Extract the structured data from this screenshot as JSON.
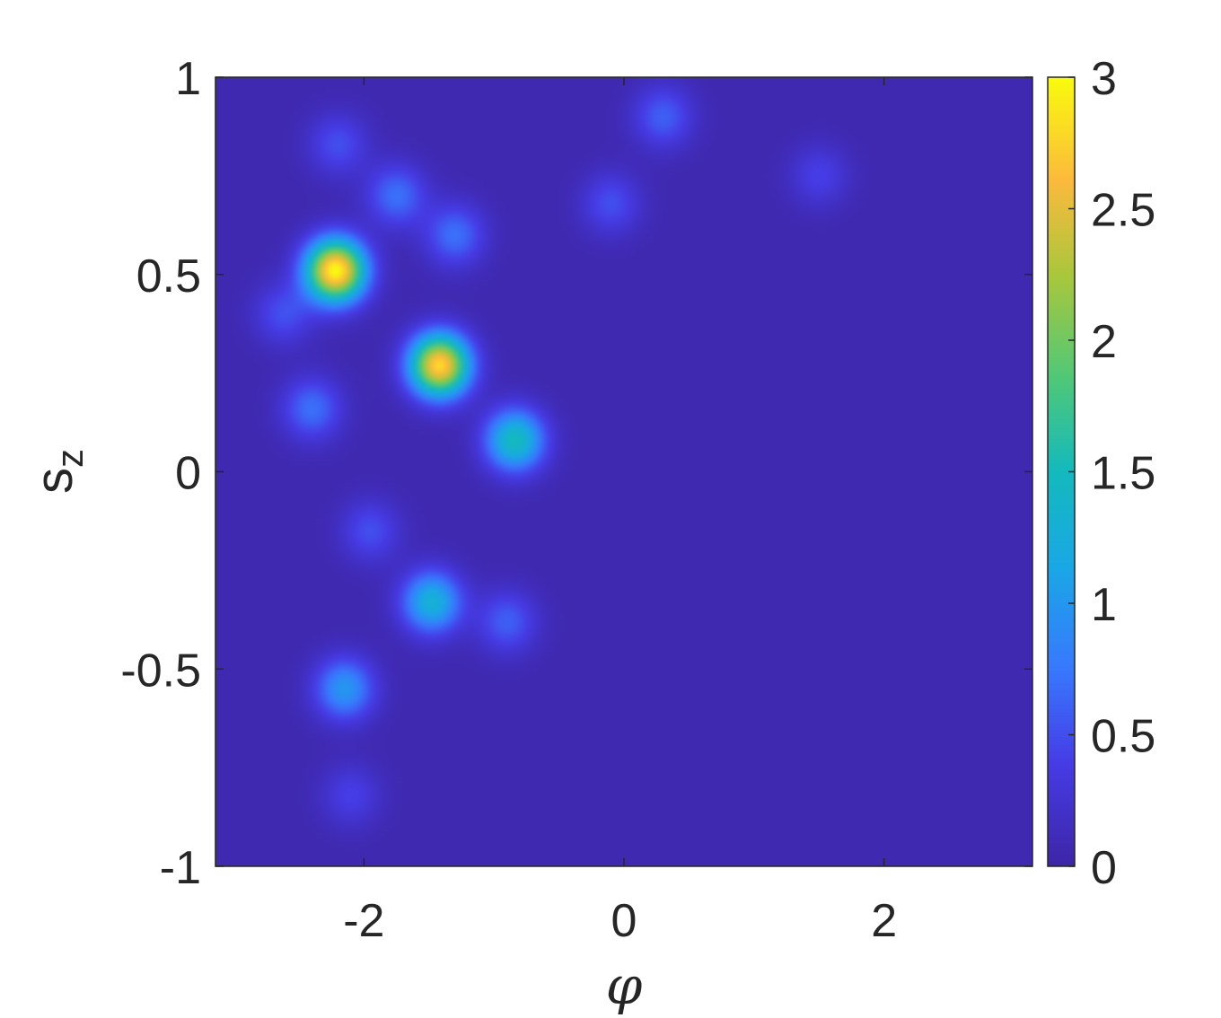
{
  "chart_data": {
    "type": "heatmap",
    "title": "",
    "xlabel": "φ",
    "ylabel_main": "s",
    "ylabel_sub": "z",
    "xlim": [
      -3.1416,
      3.1416
    ],
    "ylim": [
      -1,
      1
    ],
    "x_ticks": [
      {
        "value": -2,
        "label": "-2"
      },
      {
        "value": 0,
        "label": "0"
      },
      {
        "value": 2,
        "label": "2"
      }
    ],
    "y_ticks": [
      {
        "value": -1,
        "label": "-1"
      },
      {
        "value": -0.5,
        "label": "-0.5"
      },
      {
        "value": 0,
        "label": "0"
      },
      {
        "value": 0.5,
        "label": "0.5"
      },
      {
        "value": 1,
        "label": "1"
      }
    ],
    "colorbar": {
      "colormap": "parula",
      "range": [
        0,
        3
      ],
      "ticks": [
        {
          "value": 0,
          "label": "0"
        },
        {
          "value": 0.5,
          "label": "0.5"
        },
        {
          "value": 1,
          "label": "1"
        },
        {
          "value": 1.5,
          "label": "1.5"
        },
        {
          "value": 2,
          "label": "2"
        },
        {
          "value": 2.5,
          "label": "2.5"
        },
        {
          "value": 3,
          "label": "3"
        }
      ]
    },
    "background_value": 0.05,
    "peaks": [
      {
        "x": -2.22,
        "y": 0.51,
        "value": 3.0
      },
      {
        "x": -1.42,
        "y": 0.27,
        "value": 2.8
      },
      {
        "x": -0.84,
        "y": 0.08,
        "value": 1.5
      },
      {
        "x": -1.48,
        "y": -0.33,
        "value": 1.3
      },
      {
        "x": -2.15,
        "y": -0.55,
        "value": 1.0
      },
      {
        "x": -2.4,
        "y": 0.16,
        "value": 0.7
      },
      {
        "x": -2.62,
        "y": 0.4,
        "value": 0.5
      },
      {
        "x": -1.75,
        "y": 0.7,
        "value": 0.7
      },
      {
        "x": -1.3,
        "y": 0.6,
        "value": 0.7
      },
      {
        "x": -2.2,
        "y": 0.83,
        "value": 0.5
      },
      {
        "x": -0.9,
        "y": -0.38,
        "value": 0.6
      },
      {
        "x": -1.95,
        "y": -0.15,
        "value": 0.5
      },
      {
        "x": -2.1,
        "y": -0.82,
        "value": 0.4
      },
      {
        "x": 0.3,
        "y": 0.9,
        "value": 0.6
      },
      {
        "x": 1.5,
        "y": 0.75,
        "value": 0.4
      },
      {
        "x": -0.1,
        "y": 0.68,
        "value": 0.5
      }
    ]
  }
}
